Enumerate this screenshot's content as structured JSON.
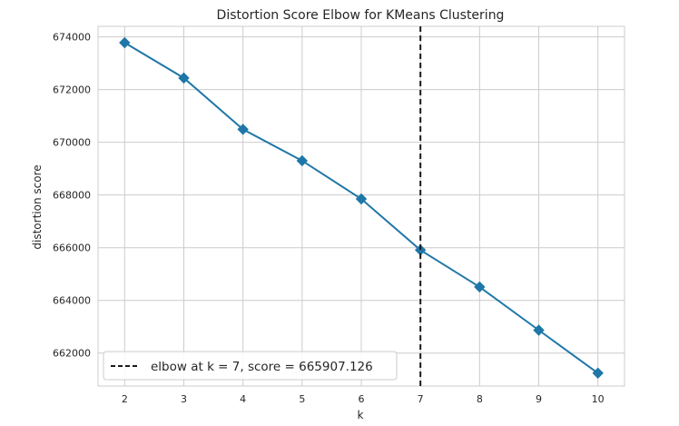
{
  "chart_data": {
    "type": "line",
    "title": "Distortion Score Elbow for KMeans Clustering",
    "xlabel": "k",
    "ylabel": "distortion score",
    "x": [
      2,
      3,
      4,
      5,
      6,
      7,
      8,
      9,
      10
    ],
    "series": [
      {
        "values": [
          673780,
          672440,
          670490,
          669300,
          667850,
          665910,
          664510,
          662870,
          661240
        ],
        "color": "#1f77a8",
        "marker": "diamond"
      }
    ],
    "x_ticks": [
      "2",
      "3",
      "4",
      "5",
      "6",
      "7",
      "8",
      "9",
      "10"
    ],
    "y_ticks": [
      "662000",
      "664000",
      "666000",
      "668000",
      "670000",
      "672000",
      "674000"
    ],
    "xlim": [
      1.55,
      10.45
    ],
    "ylim": [
      660750,
      674400
    ],
    "grid": true,
    "legend_position": "lower-left",
    "elbow": {
      "k": 7,
      "score": 665907.126,
      "style": "dashed",
      "color": "#1a1a1a",
      "legend_label": "elbow at k = 7, score = 665907.126"
    }
  }
}
